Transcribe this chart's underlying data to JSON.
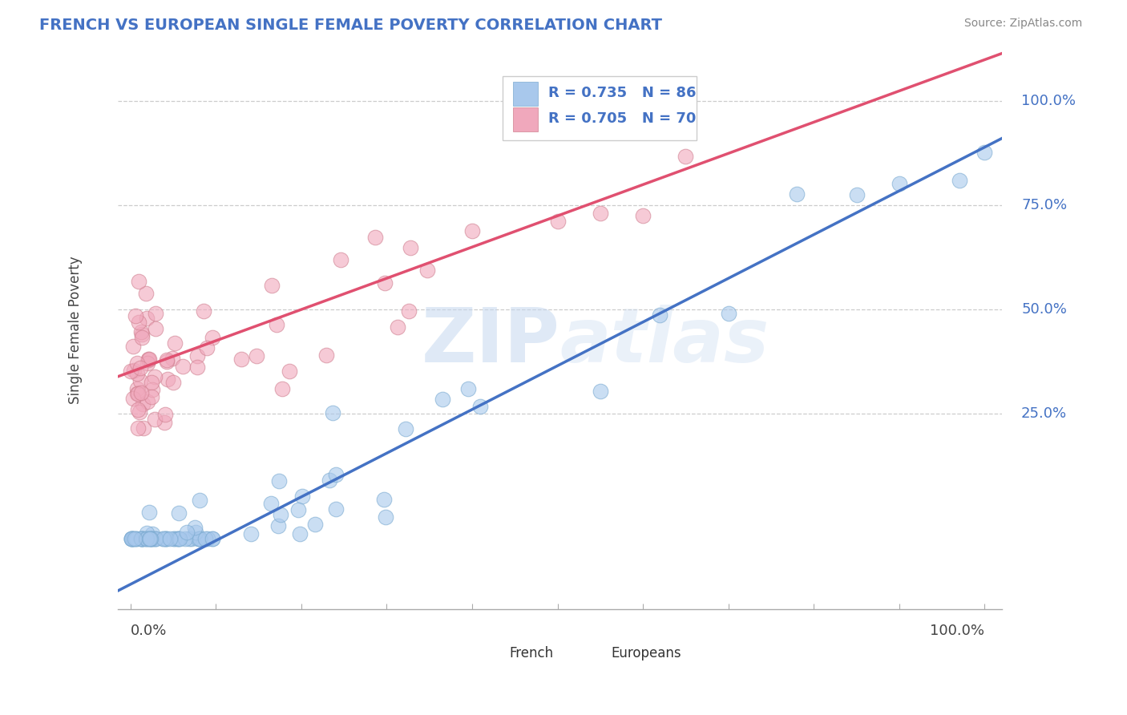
{
  "title": "FRENCH VS EUROPEAN SINGLE FEMALE POVERTY CORRELATION CHART",
  "source_text": "Source: ZipAtlas.com",
  "ylabel": "Single Female Poverty",
  "y_ticks": [
    0.25,
    0.5,
    0.75,
    1.0
  ],
  "y_tick_labels": [
    "25.0%",
    "50.0%",
    "75.0%",
    "100.0%"
  ],
  "watermark": "ZIPAtlas",
  "french_R": 0.735,
  "french_N": 86,
  "european_R": 0.705,
  "european_N": 70,
  "french_color": "#A8C8EC",
  "european_color": "#F0A8BC",
  "french_line_color": "#4472C4",
  "european_line_color": "#E05070",
  "title_color": "#4472C4",
  "legend_text_color": "#4472C4",
  "right_tick_color": "#4472C4",
  "french_line_slope": 1.05,
  "french_line_intercept": -0.16,
  "european_line_slope": 0.75,
  "european_line_intercept": 0.35,
  "xlim": [
    -0.015,
    1.02
  ],
  "ylim": [
    -0.22,
    1.12
  ],
  "figsize": [
    14.06,
    8.92
  ],
  "dpi": 100
}
